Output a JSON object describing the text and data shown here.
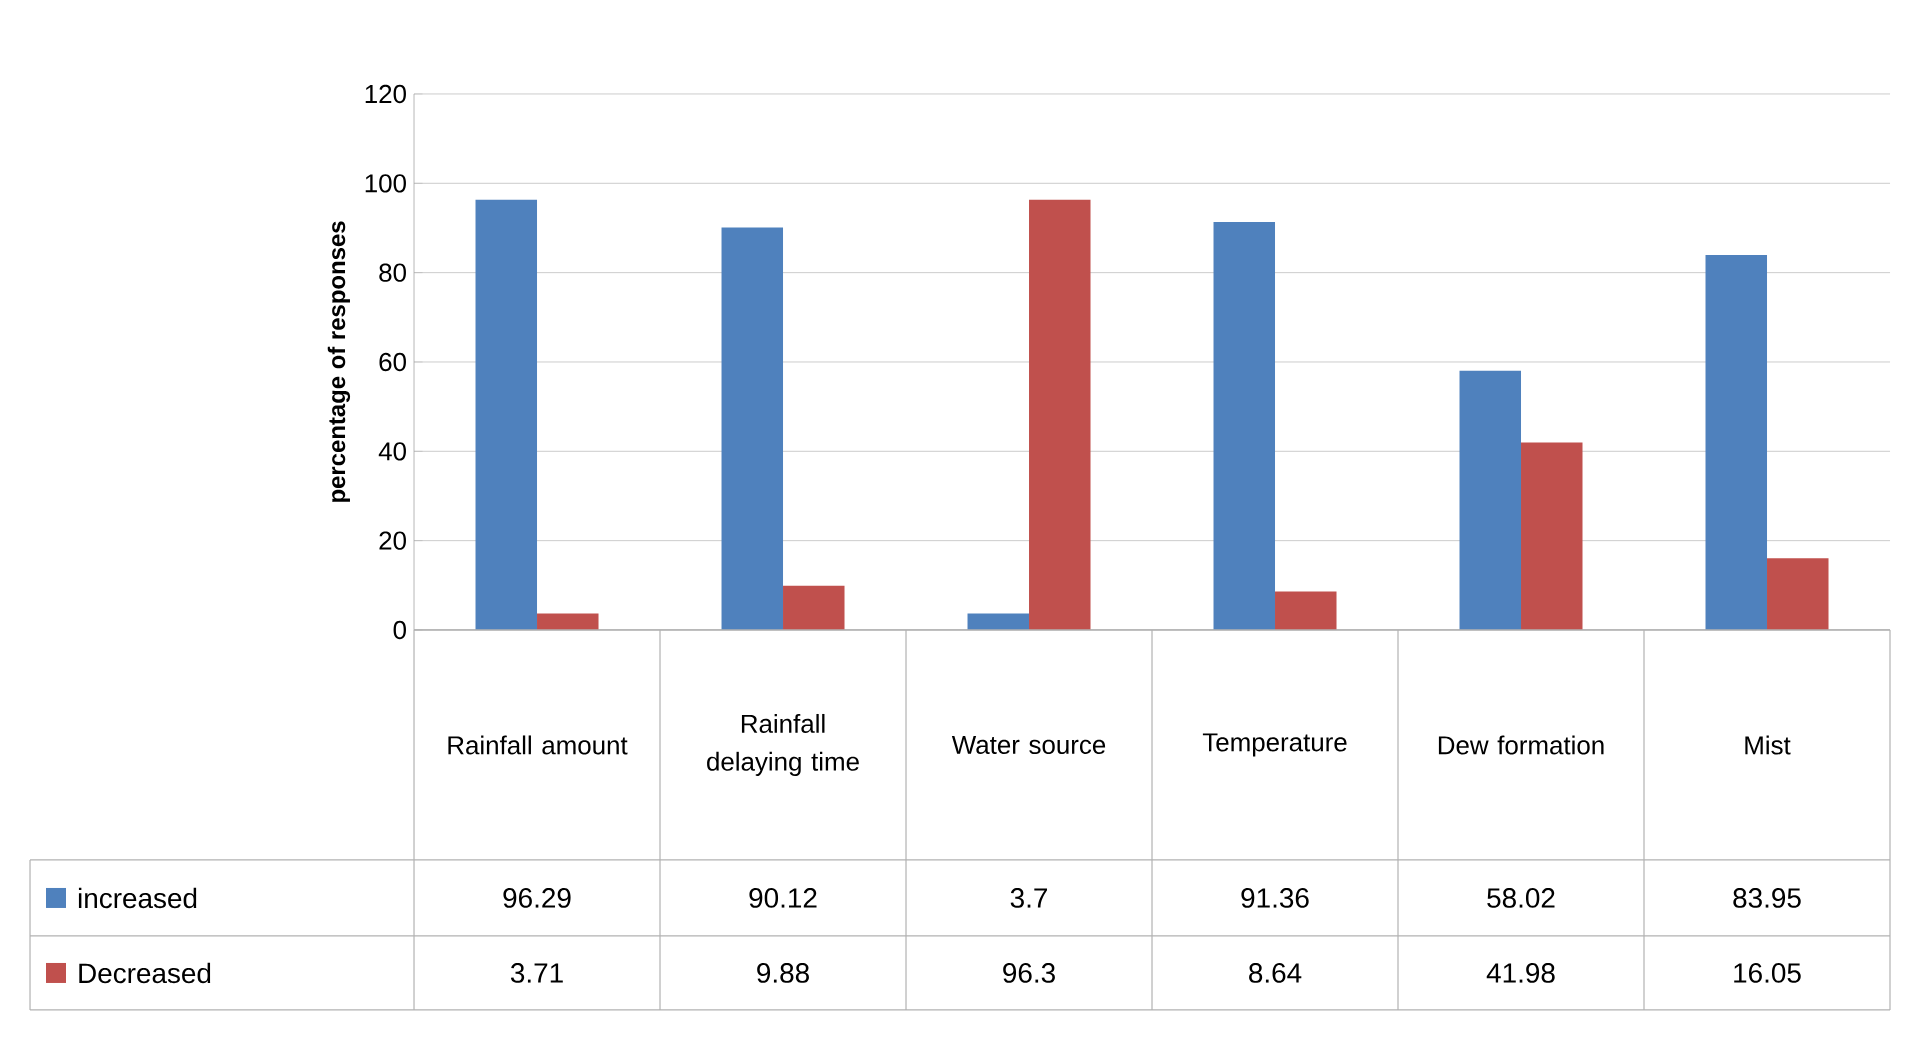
{
  "chart_data": {
    "type": "bar",
    "ylabel": "percentage of responses",
    "categories": [
      "Rainfall amount",
      "Rainfall delaying time",
      "Water source",
      "Temperature",
      "Dew formation",
      "Mist"
    ],
    "series": [
      {
        "name": "increased",
        "color": "#4f81bd",
        "values": [
          96.29,
          90.12,
          3.7,
          91.36,
          58.02,
          83.95
        ]
      },
      {
        "name": "Decreased",
        "color": "#c0504d",
        "values": [
          3.71,
          9.88,
          96.3,
          8.64,
          41.98,
          16.05
        ]
      }
    ],
    "ylim": [
      0,
      120
    ],
    "yticks": [
      0,
      20,
      40,
      60,
      80,
      100,
      120
    ],
    "grid": "y",
    "legend": "bottom",
    "data_labels": true
  }
}
